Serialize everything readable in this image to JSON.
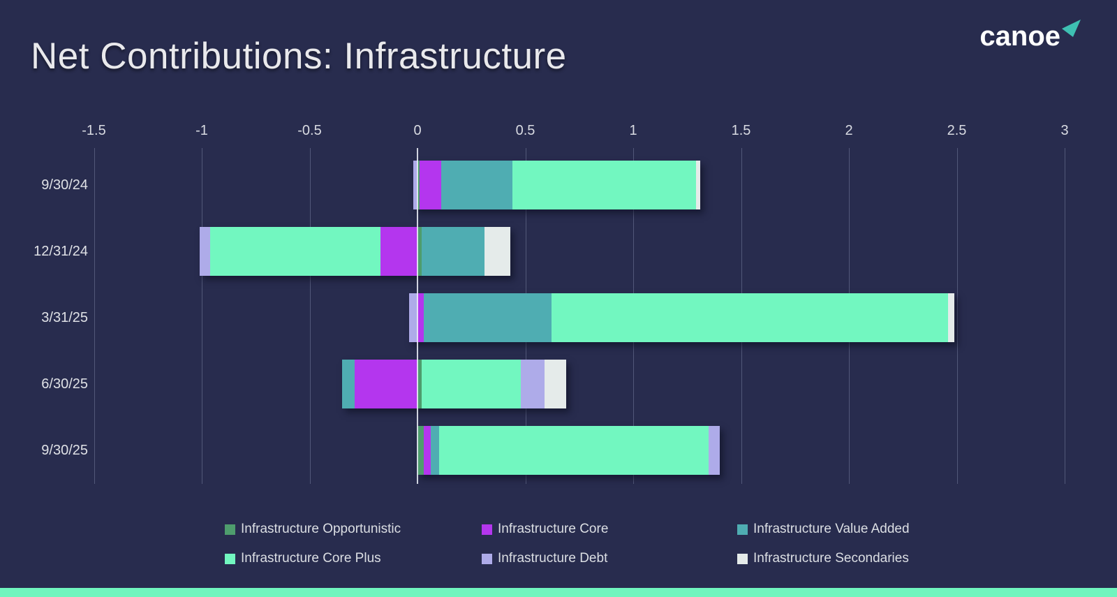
{
  "title": "Net Contributions: Infrastructure",
  "logo": {
    "text": "canoe",
    "arrow_color": "#3ec0b2"
  },
  "colors": {
    "background": "#282c4e",
    "accent_bar": "#70f5be",
    "axis_text": "#d9dbe2",
    "gridline": "rgba(195,205,235,0.28)",
    "zero_line": "rgba(238,242,250,0.85)"
  },
  "chart_data": {
    "type": "bar",
    "orientation": "horizontal",
    "stacked": true,
    "title": "Net Contributions: Infrastructure",
    "grid": true,
    "legend_position": "bottom",
    "xlim": [
      -1.5,
      3
    ],
    "xticks": [
      -1.5,
      -1,
      -0.5,
      0,
      0.5,
      1,
      1.5,
      2,
      2.5,
      3
    ],
    "xtick_labels": [
      "-1.5",
      "-1",
      "-0.5",
      "0",
      "0.5",
      "1",
      "1.5",
      "2",
      "2.5",
      "3"
    ],
    "categories": [
      "9/30/24",
      "12/31/24",
      "3/31/25",
      "6/30/25",
      "9/30/25"
    ],
    "series": [
      {
        "name": "Infrastructure Opportunistic",
        "color": "#4e9d6d",
        "values": [
          0.01,
          0.02,
          0,
          0.02,
          0.03
        ]
      },
      {
        "name": "Infrastructure Core",
        "color": "#b436ee",
        "values": [
          0.1,
          -0.17,
          0.03,
          -0.29,
          0.03
        ]
      },
      {
        "name": "Infrastructure Value Added",
        "color": "#4fadb2",
        "values": [
          0.33,
          0.29,
          0.59,
          -0.06,
          0.04
        ]
      },
      {
        "name": "Infrastructure Core Plus",
        "color": "#72f7c0",
        "values": [
          0.85,
          -0.79,
          1.84,
          0.46,
          1.25
        ]
      },
      {
        "name": "Infrastructure Debt",
        "color": "#aeabe9",
        "values": [
          -0.02,
          -0.05,
          -0.04,
          0.11,
          0.05
        ]
      },
      {
        "name": "Infrastructure Secondaries",
        "color": "#e5ebea",
        "values": [
          0.02,
          0.12,
          0.03,
          0.1,
          0
        ]
      }
    ]
  }
}
